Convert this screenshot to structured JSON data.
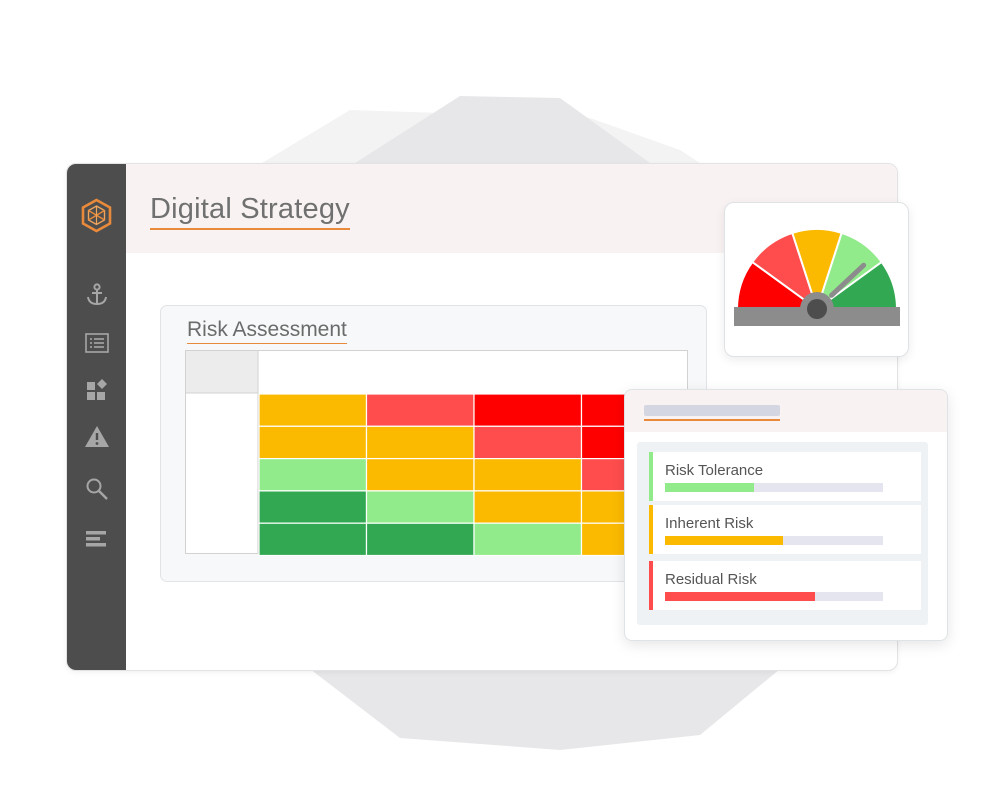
{
  "app": {
    "title": "Digital Strategy"
  },
  "sidebar": {
    "items": [
      {
        "icon": "anchor-icon"
      },
      {
        "icon": "list-icon"
      },
      {
        "icon": "shapes-icon"
      },
      {
        "icon": "warning-icon"
      },
      {
        "icon": "search-icon"
      },
      {
        "icon": "bars-icon"
      }
    ]
  },
  "risk_assessment": {
    "title": "Risk Assessment",
    "colors": {
      "red": "#ff0000",
      "light_red": "#ff4d4d",
      "amber": "#fbba00",
      "light_green": "#91eb8a",
      "green": "#33a853"
    },
    "grid": [
      [
        "amber",
        "light_red",
        "red",
        "red"
      ],
      [
        "amber",
        "amber",
        "light_red",
        "red"
      ],
      [
        "light_green",
        "amber",
        "amber",
        "light_red"
      ],
      [
        "green",
        "light_green",
        "amber",
        "amber"
      ],
      [
        "green",
        "green",
        "light_green",
        "amber"
      ]
    ]
  },
  "gauge": {
    "segment_colors": [
      "#ff0000",
      "#ff4d4d",
      "#fbba00",
      "#91eb8a",
      "#33a853"
    ],
    "needle_value": 0.76
  },
  "risk_levels": {
    "items": [
      {
        "label": "Risk Tolerance",
        "value": 0.41,
        "color": "#91eb8a"
      },
      {
        "label": "Inherent Risk",
        "value": 0.54,
        "color": "#fbba00"
      },
      {
        "label": "Residual Risk",
        "value": 0.69,
        "color": "#ff4d4d"
      }
    ]
  }
}
